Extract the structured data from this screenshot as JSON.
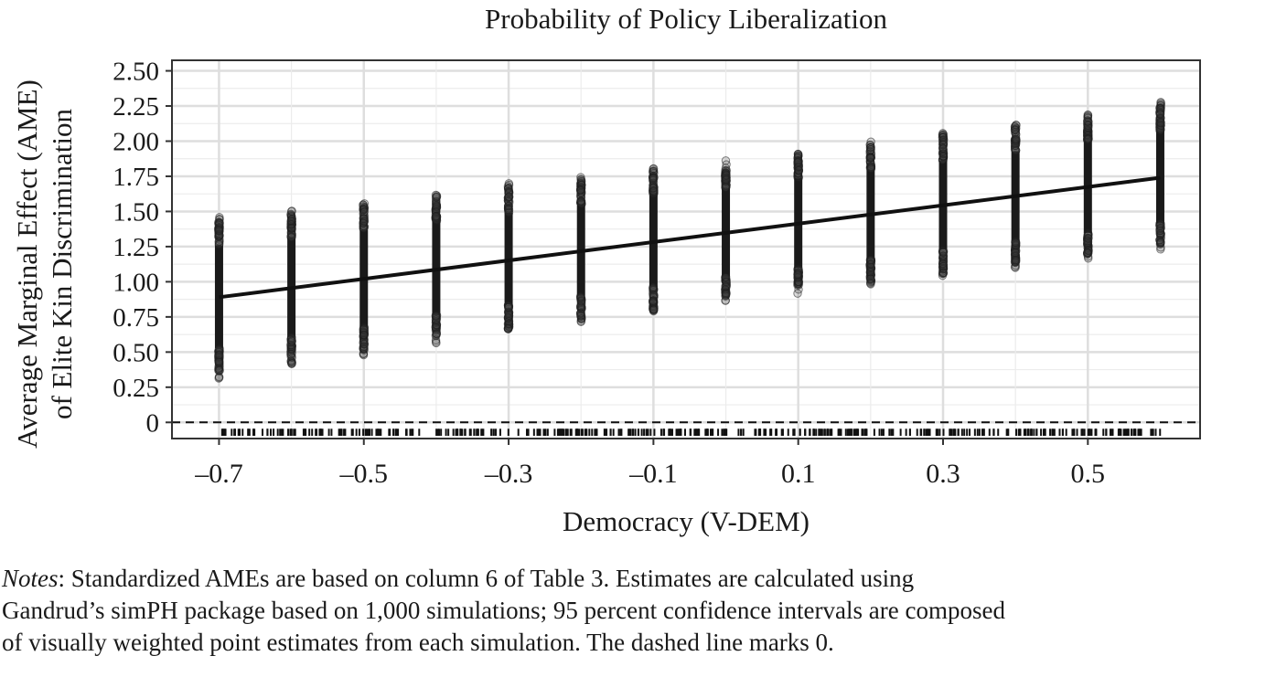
{
  "chart_data": {
    "type": "scatter",
    "title": "Probability of Policy Liberalization",
    "xlabel": "Democracy (V-DEM)",
    "ylabel_line1": "Average Marginal Effect (AME)",
    "ylabel_line2": "of Elite Kin Discrimination",
    "xlim": [
      -0.765,
      0.655
    ],
    "ylim": [
      -0.115,
      2.575
    ],
    "x_ticks": [
      -0.7,
      -0.5,
      -0.3,
      -0.1,
      0.1,
      0.3,
      0.5
    ],
    "x_tick_labels": [
      "–0.7",
      "–0.5",
      "–0.3",
      "–0.1",
      "0.1",
      "0.3",
      "0.5"
    ],
    "y_ticks": [
      0,
      0.25,
      0.5,
      0.75,
      1.0,
      1.25,
      1.5,
      1.75,
      2.0,
      2.25,
      2.5
    ],
    "y_tick_labels": [
      "0",
      "0.25",
      "0.50",
      "0.75",
      "1.00",
      "1.25",
      "1.50",
      "1.75",
      "2.00",
      "2.25",
      "2.50"
    ],
    "grid": true,
    "reference_line": {
      "y": 0,
      "style": "dashed"
    },
    "simulation_columns": {
      "x": [
        -0.7,
        -0.6,
        -0.5,
        -0.4,
        -0.3,
        -0.2,
        -0.1,
        0.0,
        0.1,
        0.2,
        0.3,
        0.4,
        0.5,
        0.6
      ],
      "median": [
        0.9,
        0.96,
        1.02,
        1.09,
        1.15,
        1.21,
        1.28,
        1.34,
        1.41,
        1.47,
        1.54,
        1.6,
        1.67,
        1.73
      ],
      "lower": [
        0.3,
        0.39,
        0.47,
        0.56,
        0.65,
        0.71,
        0.77,
        0.85,
        0.91,
        0.97,
        1.04,
        1.1,
        1.15,
        1.22
      ],
      "upper": [
        1.48,
        1.53,
        1.58,
        1.64,
        1.7,
        1.75,
        1.82,
        1.87,
        1.94,
        2.0,
        2.06,
        2.13,
        2.21,
        2.28
      ]
    },
    "fitted_line": {
      "x": [
        -0.7,
        0.6
      ],
      "y": [
        0.89,
        1.74
      ]
    },
    "rug": {
      "x_range": [
        -0.7,
        0.6
      ]
    }
  },
  "notes": {
    "label": "Notes",
    "line1": ": Standardized AMEs are based on column 6 of Table 3. Estimates are calculated using",
    "line2": "Gandrud’s simPH package based on 1,000 simulations; 95 percent confidence intervals are composed",
    "line3": "of visually weighted point estimates from each simulation. The dashed line marks 0."
  },
  "colors": {
    "points": "#1a1a1a",
    "grid": "#dedede",
    "border": "#333333",
    "line": "#111111"
  }
}
